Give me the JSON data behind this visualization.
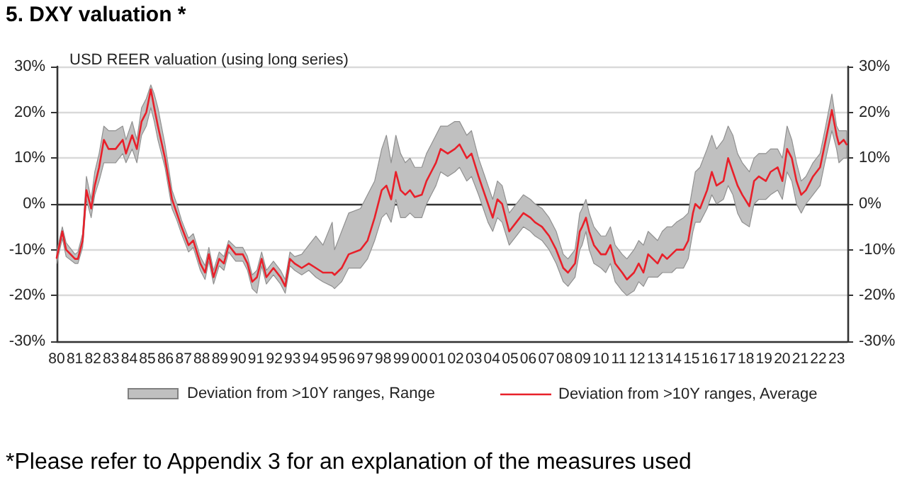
{
  "chart_data": {
    "type": "line",
    "title": "5. DXY valuation *",
    "subtitle": "USD REER valuation (using long series)",
    "annotations": [
      "Deviation from >10Y ranges, Range",
      "*Please refer to Appendix 3 for an explanation of the measures used"
    ],
    "x": [
      1980.0,
      1980.31,
      1980.52,
      1981.01,
      1981.17,
      1981.43,
      1981.64,
      1981.9,
      1982.1,
      1982.34,
      1982.6,
      1982.86,
      1983.25,
      1983.64,
      1983.82,
      1984.16,
      1984.42,
      1984.68,
      1984.94,
      1985.19,
      1985.38,
      1985.58,
      1985.97,
      1986.36,
      1986.62,
      1986.88,
      1987.27,
      1987.53,
      1987.92,
      1988.18,
      1988.39,
      1988.65,
      1988.96,
      1989.22,
      1989.48,
      1989.87,
      1990.26,
      1990.52,
      1990.78,
      1991.04,
      1991.3,
      1991.56,
      1991.95,
      1992.34,
      1992.6,
      1992.86,
      1993.12,
      1993.51,
      1993.9,
      1994.29,
      1994.68,
      1995.19,
      1995.32,
      1995.71,
      1996.1,
      1996.75,
      1997.14,
      1997.53,
      1997.92,
      1998.18,
      1998.44,
      1998.7,
      1998.96,
      1999.22,
      1999.48,
      1999.74,
      2000.13,
      2000.39,
      2000.65,
      2000.91,
      2001.17,
      2001.56,
      2001.95,
      2002.21,
      2002.61,
      2002.87,
      2003.26,
      2003.52,
      2003.78,
      2004.04,
      2004.3,
      2004.56,
      2004.95,
      2005.34,
      2005.73,
      2006.12,
      2006.37,
      2006.76,
      2007.15,
      2007.54,
      2007.93,
      2008.19,
      2008.58,
      2008.84,
      2008.97,
      2009.18,
      2009.36,
      2009.62,
      2010.01,
      2010.27,
      2010.53,
      2010.79,
      2011.18,
      2011.44,
      2011.83,
      2012.09,
      2012.35,
      2012.61,
      2012.87,
      2013.13,
      2013.39,
      2013.65,
      2013.91,
      2014.17,
      2014.56,
      2014.82,
      2015.08,
      2015.21,
      2015.47,
      2015.86,
      2016.12,
      2016.38,
      2016.76,
      2017.02,
      2017.28,
      2017.54,
      2017.8,
      2018.19,
      2018.45,
      2018.71,
      2019.1,
      2019.36,
      2019.75,
      2020.01,
      2020.27,
      2020.53,
      2020.79,
      2021.05,
      2021.31,
      2021.7,
      2022.09,
      2022.35,
      2022.74,
      2023.0,
      2023.13,
      2023.39,
      2023.55
    ],
    "series": [
      {
        "name": "Deviation from >10Y ranges, Average",
        "color": "#e8202a",
        "lower": [
          -13,
          -7.5,
          -11.5,
          -13,
          -13,
          -9.5,
          1,
          -3,
          2,
          5,
          9,
          9,
          9,
          11,
          9,
          12,
          9,
          15,
          17,
          21,
          18,
          14,
          8,
          -1,
          -3.5,
          -6.5,
          -10.5,
          -9.5,
          -14.5,
          -16.5,
          -12.5,
          -17.5,
          -13.5,
          -14.5,
          -10.5,
          -12.5,
          -12.5,
          -14.5,
          -18.5,
          -19.5,
          -13.5,
          -17.5,
          -15.5,
          -17.5,
          -19.5,
          -13.5,
          -14.5,
          -15.5,
          -14.5,
          -16,
          -17,
          -18,
          -18.5,
          -17,
          -14,
          -14,
          -12,
          -8,
          -3,
          -2,
          -4,
          1,
          -3,
          -3,
          -2,
          -3,
          -3,
          0,
          2,
          4,
          7,
          6,
          7,
          8,
          5,
          6,
          2,
          -1,
          -4,
          -6,
          -3,
          -4,
          -9,
          -7,
          -5,
          -6,
          -7,
          -8,
          -10,
          -13,
          -17,
          -18,
          -16,
          -10,
          -9,
          -6,
          -10,
          -13,
          -14,
          -15,
          -13,
          -17,
          -19,
          -20,
          -19,
          -17,
          -18,
          -16,
          -16,
          -16,
          -15,
          -15,
          -15,
          -14,
          -14,
          -12,
          -6,
          -4,
          -4,
          -1,
          2,
          0,
          1,
          4,
          2,
          -2,
          -4,
          -5,
          0,
          1,
          1,
          2,
          3,
          1,
          7,
          5,
          0,
          -2,
          0,
          2,
          4,
          9,
          16,
          12,
          9,
          10,
          10
        ],
        "upper": [
          -10.5,
          -5,
          -8.5,
          -11,
          -10.5,
          -6.5,
          6,
          1,
          7,
          11,
          17,
          16,
          16,
          17,
          14,
          18,
          14,
          21,
          23,
          26,
          24,
          21,
          13,
          3,
          0,
          -3.5,
          -7.5,
          -6.5,
          -11.5,
          -13.5,
          -9.5,
          -14.5,
          -10.5,
          -11.5,
          -8,
          -9.5,
          -9.5,
          -11.5,
          -15.5,
          -14.5,
          -10.5,
          -14.5,
          -12.5,
          -14.5,
          -16.5,
          -10.5,
          -11.5,
          -11,
          -9,
          -7,
          -9,
          -4,
          -10,
          -6,
          -2,
          -1,
          2,
          5,
          12,
          15,
          9,
          15,
          11,
          9,
          10,
          8,
          8,
          11,
          13,
          15,
          17,
          17,
          18,
          18,
          15,
          16,
          10,
          7,
          4,
          1,
          5,
          4,
          -2,
          0,
          2,
          1,
          0,
          -1,
          -3,
          -6,
          -11,
          -12,
          -10,
          -2,
          -1,
          1,
          -2,
          -5,
          -7,
          -7,
          -5,
          -9,
          -11,
          -12,
          -10,
          -8,
          -9,
          -6,
          -7,
          -8,
          -6,
          -5,
          -5,
          -4,
          -3,
          -2,
          4,
          7,
          8,
          12,
          15,
          12,
          14,
          17,
          15,
          11,
          9,
          7,
          10,
          11,
          11,
          12,
          12,
          10,
          17,
          14,
          9,
          5,
          6,
          9,
          11,
          16,
          24,
          17,
          16,
          16,
          16
        ],
        "values": [
          -11.8,
          -6,
          -10,
          -12,
          -12,
          -8,
          3,
          -1,
          4,
          8,
          14,
          12,
          12,
          14,
          11,
          15,
          12,
          18,
          20,
          25,
          21,
          17,
          10,
          1,
          -2,
          -5,
          -9,
          -8,
          -13,
          -15,
          -11,
          -16,
          -12,
          -13,
          -9,
          -11,
          -11,
          -13,
          -17,
          -16,
          -12,
          -16,
          -14,
          -16,
          -18,
          -12,
          -13,
          -14,
          -13,
          -14,
          -15,
          -15,
          -15.5,
          -14,
          -11,
          -10,
          -8,
          -3,
          3,
          4,
          1,
          7,
          3,
          2,
          3,
          1.5,
          2,
          5,
          7,
          9,
          12,
          11,
          12,
          13,
          10,
          11,
          6,
          3,
          0,
          -3,
          1,
          0,
          -6,
          -4,
          -2,
          -3,
          -4,
          -5,
          -7,
          -10,
          -14,
          -15,
          -13,
          -6,
          -5,
          -3,
          -6,
          -9,
          -11,
          -11,
          -9,
          -13,
          -15,
          -16.5,
          -15,
          -13,
          -15,
          -11,
          -12,
          -13,
          -11,
          -12,
          -11,
          -10,
          -10,
          -8,
          -2,
          0,
          -1,
          3,
          7,
          4,
          5,
          10,
          7,
          4,
          2,
          -0.5,
          5,
          6,
          5,
          7,
          8,
          5,
          12,
          10,
          5,
          2,
          3,
          6,
          8,
          13,
          20.5,
          15,
          13,
          14,
          13
        ]
      }
    ],
    "xlim": [
      1980,
      2023.6
    ],
    "xticks": [
      {
        "value": 1980,
        "label": "80"
      },
      {
        "value": 1981,
        "label": "81"
      },
      {
        "value": 1982,
        "label": "82"
      },
      {
        "value": 1983,
        "label": "83"
      },
      {
        "value": 1984,
        "label": "84"
      },
      {
        "value": 1985,
        "label": "85"
      },
      {
        "value": 1986,
        "label": "86"
      },
      {
        "value": 1987,
        "label": "87"
      },
      {
        "value": 1988,
        "label": "88"
      },
      {
        "value": 1989,
        "label": "89"
      },
      {
        "value": 1990,
        "label": "90"
      },
      {
        "value": 1991,
        "label": "91"
      },
      {
        "value": 1992,
        "label": "92"
      },
      {
        "value": 1993,
        "label": "93"
      },
      {
        "value": 1994,
        "label": "94"
      },
      {
        "value": 1995,
        "label": "95"
      },
      {
        "value": 1996,
        "label": "96"
      },
      {
        "value": 1997,
        "label": "97"
      },
      {
        "value": 1998,
        "label": "98"
      },
      {
        "value": 1999,
        "label": "99"
      },
      {
        "value": 2000,
        "label": "00"
      },
      {
        "value": 2001,
        "label": "01"
      },
      {
        "value": 2002,
        "label": "02"
      },
      {
        "value": 2003,
        "label": "03"
      },
      {
        "value": 2004,
        "label": "04"
      },
      {
        "value": 2005,
        "label": "05"
      },
      {
        "value": 2006,
        "label": "06"
      },
      {
        "value": 2007,
        "label": "07"
      },
      {
        "value": 2008,
        "label": "08"
      },
      {
        "value": 2009,
        "label": "09"
      },
      {
        "value": 2010,
        "label": "10"
      },
      {
        "value": 2011,
        "label": "11"
      },
      {
        "value": 2012,
        "label": "12"
      },
      {
        "value": 2013,
        "label": "13"
      },
      {
        "value": 2014,
        "label": "14"
      },
      {
        "value": 2015,
        "label": "15"
      },
      {
        "value": 2016,
        "label": "16"
      },
      {
        "value": 2017,
        "label": "17"
      },
      {
        "value": 2018,
        "label": "18"
      },
      {
        "value": 2019,
        "label": "19"
      },
      {
        "value": 2020,
        "label": "20"
      },
      {
        "value": 2021,
        "label": "21"
      },
      {
        "value": 2022,
        "label": "22"
      },
      {
        "value": 2023,
        "label": "23"
      }
    ],
    "ylim": [
      -30,
      30
    ],
    "yticks": [
      {
        "value": -30,
        "label": "-30%"
      },
      {
        "value": -20,
        "label": "-20%"
      },
      {
        "value": -10,
        "label": "-10%"
      },
      {
        "value": 0,
        "label": "0%"
      },
      {
        "value": 10,
        "label": "10%"
      },
      {
        "value": 20,
        "label": "20%"
      },
      {
        "value": 30,
        "label": "30%"
      }
    ],
    "y2lim": [
      -30,
      30
    ],
    "y2ticks": [
      {
        "value": -30,
        "label": "-30%"
      },
      {
        "value": -20,
        "label": "-20%"
      },
      {
        "value": -10,
        "label": "-10%"
      },
      {
        "value": 0,
        "label": "0%"
      },
      {
        "value": 10,
        "label": "10%"
      },
      {
        "value": 20,
        "label": "20%"
      },
      {
        "value": 30,
        "label": "30%"
      }
    ],
    "grid": "y",
    "legend": "bottom",
    "marker": "none",
    "line_style": "solid"
  }
}
